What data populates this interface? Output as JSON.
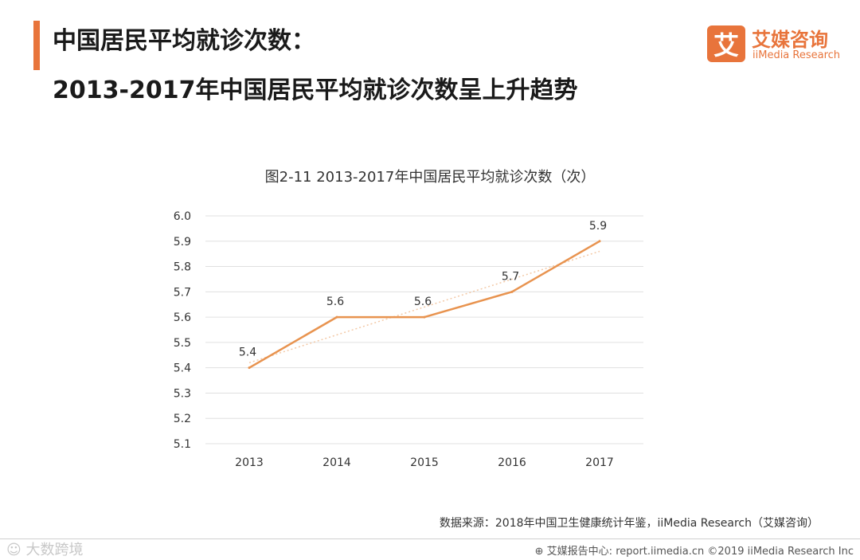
{
  "header": {
    "title_line1": "中国居民平均就诊次数：",
    "title_line2": "2013-2017年中国居民平均就诊次数呈上升趋势"
  },
  "logo": {
    "mark": "艾",
    "name_cn": "艾媒咨询",
    "name_en": "iiMedia Research"
  },
  "footer": {
    "source": "数据来源：2018年中国卫生健康统计年鉴，iiMedia Research（艾媒咨询）",
    "watermark": "☺ 大数跨境",
    "copyright": "⊕ 艾媒报告中心: report.iimedia.cn  ©2019  iiMedia Research  Inc"
  },
  "colors": {
    "accent": "#e8743b",
    "line": "#e8934f",
    "grid": "#e0e0e0",
    "trend": "#f3c9a6"
  },
  "chart_data": {
    "type": "line",
    "title": "图2-11 2013-2017年中国居民平均就诊次数（次）",
    "categories": [
      "2013",
      "2014",
      "2015",
      "2016",
      "2017"
    ],
    "values": [
      5.4,
      5.6,
      5.6,
      5.7,
      5.9
    ],
    "data_labels": [
      "5.4",
      "5.6",
      "5.6",
      "5.7",
      "5.9"
    ],
    "yticks": [
      "6.0",
      "5.9",
      "5.8",
      "5.7",
      "5.6",
      "5.5",
      "5.4",
      "5.3",
      "5.2",
      "5.1"
    ],
    "ylim": [
      5.1,
      6.0
    ],
    "grid": true,
    "trendline": "linear (dotted)",
    "xlabel": "",
    "ylabel": ""
  }
}
